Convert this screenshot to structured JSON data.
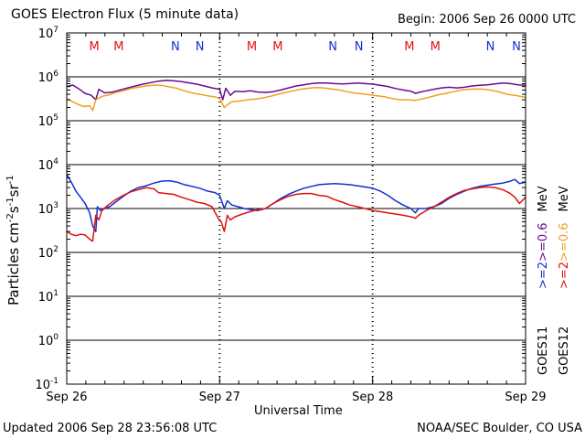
{
  "header": {
    "title": "GOES Electron Flux (5 minute data)",
    "begin": "Begin: 2006 Sep 26 0000 UTC"
  },
  "footer": {
    "updated": "Updated 2006 Sep 28 23:56:08 UTC",
    "credit": "NOAA/SEC Boulder, CO USA"
  },
  "colors": {
    "goes11_low": "#6a0d8a",
    "goes12_low": "#f0a020",
    "goes11_high": "#1030d0",
    "goes12_high": "#e01010",
    "marker_M": "#e01010",
    "marker_N": "#1030d0"
  },
  "chart_data": {
    "type": "line",
    "title": "GOES Electron Flux (5 minute data)",
    "xlabel": "Universal Time",
    "ylabel": "Particles cm-2s-1sr-1",
    "ylabel_parts": {
      "base": "Particles cm",
      "e1": "-2",
      "mid1": "s",
      "e2": "-1",
      "mid2": "sr",
      "e3": "-1"
    },
    "y_scale": "log",
    "ylim_exponents": [
      -1,
      7
    ],
    "ytick_labels": [
      {
        "exp": 7,
        "base": "10",
        "sup": "7"
      },
      {
        "exp": 6,
        "base": "10",
        "sup": "6"
      },
      {
        "exp": 5,
        "base": "10",
        "sup": "5"
      },
      {
        "exp": 4,
        "base": "10",
        "sup": "4"
      },
      {
        "exp": 3,
        "base": "10",
        "sup": "3"
      },
      {
        "exp": 2,
        "base": "10",
        "sup": "2"
      },
      {
        "exp": 1,
        "base": "10",
        "sup": "1"
      },
      {
        "exp": 0,
        "base": "10",
        "sup": "0"
      },
      {
        "exp": -1,
        "base": "10",
        "sup": "-1"
      }
    ],
    "xlim_days": [
      0,
      3
    ],
    "xtick_labels": [
      "Sep 26",
      "Sep 27",
      "Sep 28",
      "Sep 29"
    ],
    "threshold": 1000,
    "markers": [
      {
        "label": "M",
        "day": 0.18
      },
      {
        "label": "M",
        "day": 0.34
      },
      {
        "label": "N",
        "day": 0.71
      },
      {
        "label": "N",
        "day": 0.87
      },
      {
        "label": "M",
        "day": 1.21
      },
      {
        "label": "M",
        "day": 1.38
      },
      {
        "label": "N",
        "day": 1.74
      },
      {
        "label": "N",
        "day": 1.91
      },
      {
        "label": "M",
        "day": 2.24
      },
      {
        "label": "M",
        "day": 2.41
      },
      {
        "label": "N",
        "day": 2.77
      },
      {
        "label": "N",
        "day": 2.94
      }
    ],
    "legend": {
      "position": "right",
      "satellites": [
        "GOES11",
        "GOES12"
      ],
      "series_labels": [
        ">=2",
        ">=0.6"
      ],
      "unit": "MeV"
    },
    "series": [
      {
        "name": "GOES11 >=0.6 MeV",
        "color": "#6a0d8a",
        "points": [
          [
            0.0,
            600000
          ],
          [
            0.04,
            650000
          ],
          [
            0.08,
            530000
          ],
          [
            0.12,
            420000
          ],
          [
            0.16,
            380000
          ],
          [
            0.19,
            300000
          ],
          [
            0.21,
            520000
          ],
          [
            0.25,
            430000
          ],
          [
            0.3,
            450000
          ],
          [
            0.35,
            500000
          ],
          [
            0.4,
            560000
          ],
          [
            0.45,
            620000
          ],
          [
            0.5,
            680000
          ],
          [
            0.55,
            740000
          ],
          [
            0.6,
            800000
          ],
          [
            0.65,
            830000
          ],
          [
            0.7,
            810000
          ],
          [
            0.75,
            780000
          ],
          [
            0.8,
            730000
          ],
          [
            0.85,
            680000
          ],
          [
            0.9,
            620000
          ],
          [
            0.95,
            560000
          ],
          [
            1.0,
            520000
          ],
          [
            1.02,
            300000
          ],
          [
            1.04,
            550000
          ],
          [
            1.07,
            380000
          ],
          [
            1.1,
            470000
          ],
          [
            1.15,
            460000
          ],
          [
            1.2,
            480000
          ],
          [
            1.25,
            450000
          ],
          [
            1.3,
            440000
          ],
          [
            1.35,
            460000
          ],
          [
            1.4,
            500000
          ],
          [
            1.45,
            560000
          ],
          [
            1.5,
            620000
          ],
          [
            1.55,
            660000
          ],
          [
            1.6,
            700000
          ],
          [
            1.65,
            720000
          ],
          [
            1.7,
            720000
          ],
          [
            1.75,
            700000
          ],
          [
            1.8,
            690000
          ],
          [
            1.85,
            700000
          ],
          [
            1.9,
            720000
          ],
          [
            1.95,
            700000
          ],
          [
            2.0,
            680000
          ],
          [
            2.05,
            640000
          ],
          [
            2.1,
            600000
          ],
          [
            2.15,
            540000
          ],
          [
            2.2,
            500000
          ],
          [
            2.25,
            470000
          ],
          [
            2.28,
            420000
          ],
          [
            2.3,
            440000
          ],
          [
            2.35,
            480000
          ],
          [
            2.4,
            520000
          ],
          [
            2.45,
            560000
          ],
          [
            2.5,
            580000
          ],
          [
            2.55,
            560000
          ],
          [
            2.6,
            580000
          ],
          [
            2.65,
            620000
          ],
          [
            2.7,
            640000
          ],
          [
            2.75,
            660000
          ],
          [
            2.8,
            690000
          ],
          [
            2.85,
            720000
          ],
          [
            2.9,
            700000
          ],
          [
            2.95,
            660000
          ],
          [
            3.0,
            640000
          ]
        ]
      },
      {
        "name": "GOES12 >=0.6 MeV",
        "color": "#f0a020",
        "points": [
          [
            0.0,
            320000
          ],
          [
            0.04,
            270000
          ],
          [
            0.08,
            230000
          ],
          [
            0.11,
            210000
          ],
          [
            0.15,
            220000
          ],
          [
            0.17,
            170000
          ],
          [
            0.19,
            300000
          ],
          [
            0.23,
            360000
          ],
          [
            0.28,
            390000
          ],
          [
            0.32,
            440000
          ],
          [
            0.37,
            480000
          ],
          [
            0.42,
            540000
          ],
          [
            0.47,
            580000
          ],
          [
            0.52,
            620000
          ],
          [
            0.57,
            650000
          ],
          [
            0.62,
            640000
          ],
          [
            0.67,
            590000
          ],
          [
            0.72,
            550000
          ],
          [
            0.77,
            480000
          ],
          [
            0.82,
            430000
          ],
          [
            0.87,
            400000
          ],
          [
            0.92,
            370000
          ],
          [
            0.97,
            350000
          ],
          [
            1.0,
            320000
          ],
          [
            1.03,
            200000
          ],
          [
            1.05,
            230000
          ],
          [
            1.08,
            270000
          ],
          [
            1.13,
            280000
          ],
          [
            1.18,
            300000
          ],
          [
            1.23,
            310000
          ],
          [
            1.28,
            330000
          ],
          [
            1.33,
            360000
          ],
          [
            1.38,
            400000
          ],
          [
            1.43,
            440000
          ],
          [
            1.48,
            480000
          ],
          [
            1.53,
            520000
          ],
          [
            1.58,
            550000
          ],
          [
            1.63,
            570000
          ],
          [
            1.68,
            560000
          ],
          [
            1.73,
            530000
          ],
          [
            1.78,
            500000
          ],
          [
            1.83,
            460000
          ],
          [
            1.88,
            430000
          ],
          [
            1.93,
            410000
          ],
          [
            1.98,
            390000
          ],
          [
            2.03,
            370000
          ],
          [
            2.08,
            350000
          ],
          [
            2.13,
            320000
          ],
          [
            2.18,
            300000
          ],
          [
            2.23,
            300000
          ],
          [
            2.28,
            290000
          ],
          [
            2.33,
            320000
          ],
          [
            2.38,
            350000
          ],
          [
            2.43,
            390000
          ],
          [
            2.48,
            420000
          ],
          [
            2.53,
            460000
          ],
          [
            2.58,
            500000
          ],
          [
            2.63,
            520000
          ],
          [
            2.68,
            530000
          ],
          [
            2.73,
            520000
          ],
          [
            2.78,
            490000
          ],
          [
            2.83,
            450000
          ],
          [
            2.88,
            400000
          ],
          [
            2.93,
            380000
          ],
          [
            3.0,
            340000
          ]
        ]
      },
      {
        "name": "GOES11 >=2 MeV",
        "color": "#1030d0",
        "points": [
          [
            0.0,
            6000
          ],
          [
            0.03,
            4000
          ],
          [
            0.06,
            2500
          ],
          [
            0.09,
            1800
          ],
          [
            0.12,
            1300
          ],
          [
            0.15,
            800
          ],
          [
            0.17,
            400
          ],
          [
            0.19,
            300
          ],
          [
            0.2,
            1100
          ],
          [
            0.22,
            900
          ],
          [
            0.25,
            1000
          ],
          [
            0.28,
            1100
          ],
          [
            0.32,
            1400
          ],
          [
            0.37,
            1900
          ],
          [
            0.42,
            2500
          ],
          [
            0.47,
            3000
          ],
          [
            0.52,
            3300
          ],
          [
            0.57,
            3800
          ],
          [
            0.62,
            4200
          ],
          [
            0.67,
            4300
          ],
          [
            0.72,
            4000
          ],
          [
            0.77,
            3500
          ],
          [
            0.82,
            3200
          ],
          [
            0.87,
            2900
          ],
          [
            0.92,
            2500
          ],
          [
            0.97,
            2300
          ],
          [
            1.0,
            2000
          ],
          [
            1.03,
            1000
          ],
          [
            1.05,
            1500
          ],
          [
            1.08,
            1200
          ],
          [
            1.12,
            1100
          ],
          [
            1.16,
            1000
          ],
          [
            1.2,
            950
          ],
          [
            1.25,
            900
          ],
          [
            1.3,
            1000
          ],
          [
            1.35,
            1300
          ],
          [
            1.4,
            1700
          ],
          [
            1.45,
            2100
          ],
          [
            1.5,
            2500
          ],
          [
            1.55,
            2900
          ],
          [
            1.6,
            3200
          ],
          [
            1.65,
            3500
          ],
          [
            1.7,
            3600
          ],
          [
            1.75,
            3700
          ],
          [
            1.8,
            3600
          ],
          [
            1.85,
            3500
          ],
          [
            1.9,
            3300
          ],
          [
            1.95,
            3100
          ],
          [
            2.0,
            2900
          ],
          [
            2.05,
            2500
          ],
          [
            2.1,
            2000
          ],
          [
            2.15,
            1500
          ],
          [
            2.2,
            1200
          ],
          [
            2.25,
            1000
          ],
          [
            2.28,
            800
          ],
          [
            2.3,
            1000
          ],
          [
            2.35,
            1000
          ],
          [
            2.4,
            1100
          ],
          [
            2.45,
            1300
          ],
          [
            2.5,
            1700
          ],
          [
            2.55,
            2100
          ],
          [
            2.6,
            2500
          ],
          [
            2.65,
            2900
          ],
          [
            2.7,
            3200
          ],
          [
            2.75,
            3400
          ],
          [
            2.8,
            3600
          ],
          [
            2.85,
            3800
          ],
          [
            2.9,
            4200
          ],
          [
            2.93,
            4600
          ],
          [
            2.96,
            3700
          ],
          [
            3.0,
            4000
          ]
        ]
      },
      {
        "name": "GOES12 >=2 MeV",
        "color": "#e01010",
        "points": [
          [
            0.0,
            300
          ],
          [
            0.03,
            260
          ],
          [
            0.06,
            240
          ],
          [
            0.09,
            260
          ],
          [
            0.12,
            250
          ],
          [
            0.15,
            200
          ],
          [
            0.17,
            180
          ],
          [
            0.19,
            700
          ],
          [
            0.21,
            550
          ],
          [
            0.23,
            900
          ],
          [
            0.27,
            1200
          ],
          [
            0.32,
            1600
          ],
          [
            0.37,
            2000
          ],
          [
            0.42,
            2400
          ],
          [
            0.47,
            2700
          ],
          [
            0.52,
            3000
          ],
          [
            0.57,
            2800
          ],
          [
            0.6,
            2300
          ],
          [
            0.65,
            2200
          ],
          [
            0.7,
            2100
          ],
          [
            0.75,
            1800
          ],
          [
            0.8,
            1600
          ],
          [
            0.85,
            1400
          ],
          [
            0.9,
            1300
          ],
          [
            0.95,
            1100
          ],
          [
            0.99,
            600
          ],
          [
            1.01,
            500
          ],
          [
            1.03,
            300
          ],
          [
            1.05,
            700
          ],
          [
            1.07,
            550
          ],
          [
            1.1,
            650
          ],
          [
            1.15,
            750
          ],
          [
            1.2,
            850
          ],
          [
            1.25,
            950
          ],
          [
            1.3,
            1000
          ],
          [
            1.35,
            1300
          ],
          [
            1.4,
            1600
          ],
          [
            1.45,
            1900
          ],
          [
            1.5,
            2100
          ],
          [
            1.55,
            2200
          ],
          [
            1.6,
            2200
          ],
          [
            1.65,
            2000
          ],
          [
            1.7,
            1900
          ],
          [
            1.75,
            1600
          ],
          [
            1.8,
            1400
          ],
          [
            1.85,
            1200
          ],
          [
            1.9,
            1100
          ],
          [
            1.95,
            1000
          ],
          [
            2.0,
            900
          ],
          [
            2.05,
            850
          ],
          [
            2.1,
            800
          ],
          [
            2.15,
            750
          ],
          [
            2.2,
            700
          ],
          [
            2.25,
            650
          ],
          [
            2.28,
            600
          ],
          [
            2.3,
            700
          ],
          [
            2.35,
            900
          ],
          [
            2.4,
            1100
          ],
          [
            2.45,
            1400
          ],
          [
            2.5,
            1800
          ],
          [
            2.55,
            2200
          ],
          [
            2.6,
            2600
          ],
          [
            2.65,
            2800
          ],
          [
            2.7,
            3000
          ],
          [
            2.75,
            3100
          ],
          [
            2.8,
            3000
          ],
          [
            2.85,
            2700
          ],
          [
            2.9,
            2200
          ],
          [
            2.93,
            1800
          ],
          [
            2.96,
            1300
          ],
          [
            3.0,
            1800
          ]
        ]
      }
    ]
  }
}
